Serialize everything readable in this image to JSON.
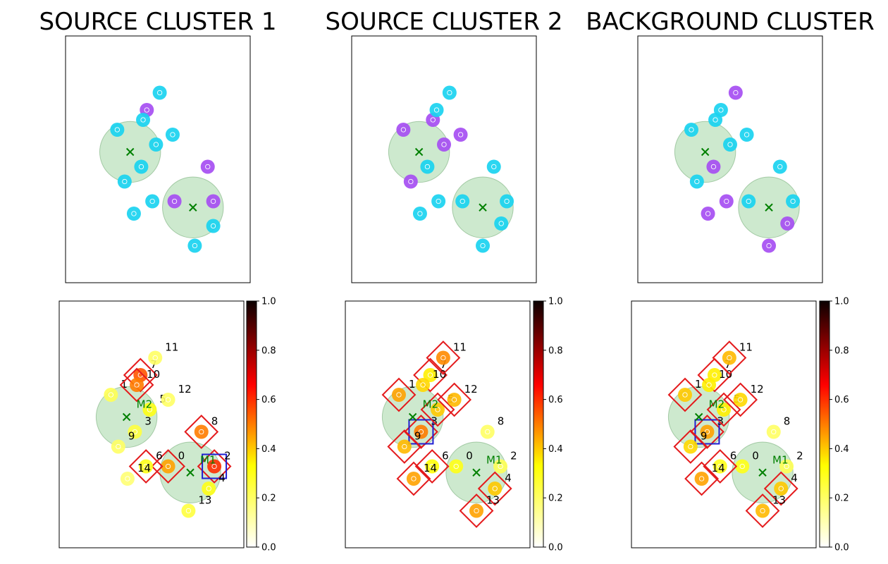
{
  "figure": {
    "colors": {
      "cluster_fill": "#4caf50",
      "centroid": "#008000",
      "point_cyan": "#1ad2f0",
      "point_purple": "#a64ef2",
      "highlight_red": "#e41a1c",
      "highlight_blue": "#1f1fd2",
      "frame": "#000000"
    },
    "colorbar": {
      "min": 0.0,
      "max": 1.0,
      "ticks": [
        "0.0",
        "0.2",
        "0.4",
        "0.6",
        "0.8",
        "1.0"
      ],
      "colormap": "hot_r"
    }
  },
  "chart_data": [
    {
      "type": "scatter",
      "title": "SOURCE CLUSTER 1",
      "xlim": [
        0,
        10
      ],
      "ylim": [
        0,
        10
      ],
      "clusters": [
        {
          "cx": 3.5,
          "cy": 5.3,
          "r": 1.65
        },
        {
          "cx": 6.9,
          "cy": 3.05,
          "r": 1.65
        }
      ],
      "points": [
        {
          "x": 5.1,
          "y": 7.7,
          "c": "cyan"
        },
        {
          "x": 4.4,
          "y": 7.0,
          "c": "purple"
        },
        {
          "x": 4.2,
          "y": 6.6,
          "c": "cyan"
        },
        {
          "x": 2.8,
          "y": 6.2,
          "c": "cyan"
        },
        {
          "x": 5.8,
          "y": 6.0,
          "c": "cyan"
        },
        {
          "x": 4.9,
          "y": 5.6,
          "c": "cyan"
        },
        {
          "x": 4.1,
          "y": 4.7,
          "c": "cyan"
        },
        {
          "x": 7.7,
          "y": 4.7,
          "c": "purple"
        },
        {
          "x": 3.2,
          "y": 4.1,
          "c": "cyan"
        },
        {
          "x": 5.9,
          "y": 3.3,
          "c": "purple"
        },
        {
          "x": 8.0,
          "y": 3.3,
          "c": "purple"
        },
        {
          "x": 4.7,
          "y": 3.3,
          "c": "cyan"
        },
        {
          "x": 3.7,
          "y": 2.8,
          "c": "cyan"
        },
        {
          "x": 8.0,
          "y": 2.3,
          "c": "cyan"
        },
        {
          "x": 7.0,
          "y": 1.5,
          "c": "cyan"
        }
      ],
      "centroids": [
        {
          "x": 3.5,
          "y": 5.3
        },
        {
          "x": 6.9,
          "y": 3.05
        }
      ]
    },
    {
      "type": "scatter",
      "title": "SOURCE CLUSTER 2",
      "xlim": [
        0,
        10
      ],
      "ylim": [
        0,
        10
      ],
      "clusters": [
        {
          "cx": 3.65,
          "cy": 5.3,
          "r": 1.65
        },
        {
          "cx": 7.1,
          "cy": 3.05,
          "r": 1.65
        }
      ],
      "points": [
        {
          "x": 5.3,
          "y": 7.7,
          "c": "cyan"
        },
        {
          "x": 4.4,
          "y": 6.6,
          "c": "purple"
        },
        {
          "x": 4.6,
          "y": 7.0,
          "c": "cyan"
        },
        {
          "x": 2.8,
          "y": 6.2,
          "c": "purple"
        },
        {
          "x": 5.9,
          "y": 6.0,
          "c": "purple"
        },
        {
          "x": 5.0,
          "y": 5.6,
          "c": "purple"
        },
        {
          "x": 4.1,
          "y": 4.7,
          "c": "cyan"
        },
        {
          "x": 7.7,
          "y": 4.7,
          "c": "cyan"
        },
        {
          "x": 3.2,
          "y": 4.1,
          "c": "purple"
        },
        {
          "x": 6.0,
          "y": 3.3,
          "c": "cyan"
        },
        {
          "x": 8.4,
          "y": 3.3,
          "c": "cyan"
        },
        {
          "x": 4.7,
          "y": 3.3,
          "c": "cyan"
        },
        {
          "x": 3.7,
          "y": 2.8,
          "c": "cyan"
        },
        {
          "x": 8.1,
          "y": 2.4,
          "c": "cyan"
        },
        {
          "x": 7.1,
          "y": 1.5,
          "c": "cyan"
        }
      ],
      "centroids": [
        {
          "x": 3.65,
          "y": 5.3
        },
        {
          "x": 7.1,
          "y": 3.05
        }
      ]
    },
    {
      "type": "scatter",
      "title": "BACKGROUND CLUSTER",
      "xlim": [
        0,
        10
      ],
      "ylim": [
        0,
        10
      ],
      "clusters": [
        {
          "cx": 3.65,
          "cy": 5.3,
          "r": 1.65
        },
        {
          "cx": 7.1,
          "cy": 3.05,
          "r": 1.65
        }
      ],
      "points": [
        {
          "x": 5.3,
          "y": 7.7,
          "c": "purple"
        },
        {
          "x": 4.2,
          "y": 6.6,
          "c": "cyan"
        },
        {
          "x": 4.5,
          "y": 7.0,
          "c": "cyan"
        },
        {
          "x": 2.9,
          "y": 6.2,
          "c": "cyan"
        },
        {
          "x": 5.9,
          "y": 6.0,
          "c": "cyan"
        },
        {
          "x": 5.0,
          "y": 5.6,
          "c": "cyan"
        },
        {
          "x": 4.1,
          "y": 4.7,
          "c": "purple"
        },
        {
          "x": 7.7,
          "y": 4.7,
          "c": "cyan"
        },
        {
          "x": 3.2,
          "y": 4.1,
          "c": "cyan"
        },
        {
          "x": 4.8,
          "y": 3.3,
          "c": "purple"
        },
        {
          "x": 6.0,
          "y": 3.3,
          "c": "cyan"
        },
        {
          "x": 8.4,
          "y": 3.3,
          "c": "cyan"
        },
        {
          "x": 3.8,
          "y": 2.8,
          "c": "purple"
        },
        {
          "x": 8.1,
          "y": 2.4,
          "c": "purple"
        },
        {
          "x": 7.1,
          "y": 1.5,
          "c": "purple"
        }
      ],
      "centroids": [
        {
          "x": 3.65,
          "y": 5.3
        },
        {
          "x": 7.1,
          "y": 3.05
        }
      ]
    },
    {
      "type": "scatter",
      "xlim": [
        0,
        10
      ],
      "ylim": [
        0,
        10
      ],
      "clusters": [
        {
          "cx": 3.65,
          "cy": 5.3,
          "r": 1.65
        },
        {
          "cx": 7.1,
          "cy": 3.05,
          "r": 1.65
        }
      ],
      "points": [
        {
          "id": "0",
          "x": 5.9,
          "y": 3.3,
          "v": 0.45,
          "red": true
        },
        {
          "id": "1",
          "x": 2.8,
          "y": 6.2,
          "v": 0.22,
          "red": false
        },
        {
          "id": "2",
          "x": 8.4,
          "y": 3.3,
          "v": 0.6,
          "red": true,
          "blue": true
        },
        {
          "id": "3",
          "x": 4.1,
          "y": 4.7,
          "v": 0.25,
          "red": false
        },
        {
          "id": "4",
          "x": 8.1,
          "y": 2.4,
          "v": 0.3,
          "red": false
        },
        {
          "id": "5",
          "x": 4.9,
          "y": 5.6,
          "v": 0.3,
          "red": false
        },
        {
          "id": "6",
          "x": 4.7,
          "y": 3.3,
          "v": 0.3,
          "red": true
        },
        {
          "id": "7",
          "x": 4.4,
          "y": 7.0,
          "v": 0.55,
          "red": true
        },
        {
          "id": "8",
          "x": 7.7,
          "y": 4.7,
          "v": 0.5,
          "red": true
        },
        {
          "id": "9",
          "x": 3.2,
          "y": 4.1,
          "v": 0.2,
          "red": false
        },
        {
          "id": "10",
          "x": 4.2,
          "y": 6.6,
          "v": 0.5,
          "red": true
        },
        {
          "id": "11",
          "x": 5.2,
          "y": 7.7,
          "v": 0.2,
          "red": false
        },
        {
          "id": "12",
          "x": 5.9,
          "y": 6.0,
          "v": 0.2,
          "red": false
        },
        {
          "id": "13",
          "x": 7.0,
          "y": 1.5,
          "v": 0.25,
          "red": false
        },
        {
          "id": "14",
          "x": 3.7,
          "y": 2.8,
          "v": 0.18,
          "red": false
        }
      ],
      "centroid_labels": [
        {
          "label": "M1",
          "x": 7.1,
          "y": 3.05
        },
        {
          "label": "M2",
          "x": 3.65,
          "y": 5.3
        }
      ]
    },
    {
      "type": "scatter",
      "xlim": [
        0,
        10
      ],
      "ylim": [
        0,
        10
      ],
      "clusters": [
        {
          "cx": 3.65,
          "cy": 5.3,
          "r": 1.65
        },
        {
          "cx": 7.1,
          "cy": 3.05,
          "r": 1.65
        }
      ],
      "points": [
        {
          "id": "0",
          "x": 6.0,
          "y": 3.3,
          "v": 0.3,
          "red": false
        },
        {
          "id": "1",
          "x": 2.9,
          "y": 6.2,
          "v": 0.45,
          "red": true
        },
        {
          "id": "2",
          "x": 8.4,
          "y": 3.3,
          "v": 0.22,
          "red": false
        },
        {
          "id": "3",
          "x": 4.1,
          "y": 4.7,
          "v": 0.5,
          "red": true,
          "blue": true
        },
        {
          "id": "4",
          "x": 8.1,
          "y": 2.4,
          "v": 0.4,
          "red": true
        },
        {
          "id": "5",
          "x": 5.0,
          "y": 5.6,
          "v": 0.4,
          "red": true
        },
        {
          "id": "6",
          "x": 4.7,
          "y": 3.3,
          "v": 0.32,
          "red": true
        },
        {
          "id": "7",
          "x": 4.6,
          "y": 7.0,
          "v": 0.35,
          "red": true
        },
        {
          "id": "8",
          "x": 7.7,
          "y": 4.7,
          "v": 0.2,
          "red": false
        },
        {
          "id": "9",
          "x": 3.2,
          "y": 4.1,
          "v": 0.42,
          "red": true
        },
        {
          "id": "10",
          "x": 4.2,
          "y": 6.6,
          "v": 0.38,
          "red": false
        },
        {
          "id": "11",
          "x": 5.3,
          "y": 7.7,
          "v": 0.48,
          "red": true
        },
        {
          "id": "12",
          "x": 5.9,
          "y": 6.0,
          "v": 0.42,
          "red": true
        },
        {
          "id": "13",
          "x": 7.1,
          "y": 1.5,
          "v": 0.45,
          "red": true
        },
        {
          "id": "14",
          "x": 3.7,
          "y": 2.8,
          "v": 0.45,
          "red": true
        }
      ],
      "centroid_labels": [
        {
          "label": "M1",
          "x": 7.1,
          "y": 3.05
        },
        {
          "label": "M2",
          "x": 3.65,
          "y": 5.3
        }
      ]
    },
    {
      "type": "scatter",
      "xlim": [
        0,
        10
      ],
      "ylim": [
        0,
        10
      ],
      "clusters": [
        {
          "cx": 3.65,
          "cy": 5.3,
          "r": 1.65
        },
        {
          "cx": 7.1,
          "cy": 3.05,
          "r": 1.65
        }
      ],
      "points": [
        {
          "id": "0",
          "x": 6.0,
          "y": 3.3,
          "v": 0.3,
          "red": false
        },
        {
          "id": "1",
          "x": 2.9,
          "y": 6.2,
          "v": 0.4,
          "red": true
        },
        {
          "id": "2",
          "x": 8.4,
          "y": 3.3,
          "v": 0.22,
          "red": false
        },
        {
          "id": "3",
          "x": 4.1,
          "y": 4.7,
          "v": 0.45,
          "red": true,
          "blue": true
        },
        {
          "id": "4",
          "x": 8.1,
          "y": 2.4,
          "v": 0.4,
          "red": true
        },
        {
          "id": "5",
          "x": 5.0,
          "y": 5.6,
          "v": 0.35,
          "red": true
        },
        {
          "id": "6",
          "x": 4.8,
          "y": 3.3,
          "v": 0.3,
          "red": true
        },
        {
          "id": "7",
          "x": 4.5,
          "y": 7.0,
          "v": 0.35,
          "red": true
        },
        {
          "id": "8",
          "x": 7.7,
          "y": 4.7,
          "v": 0.2,
          "red": false
        },
        {
          "id": "9",
          "x": 3.2,
          "y": 4.1,
          "v": 0.38,
          "red": true
        },
        {
          "id": "10",
          "x": 4.2,
          "y": 6.6,
          "v": 0.35,
          "red": false
        },
        {
          "id": "11",
          "x": 5.3,
          "y": 7.7,
          "v": 0.42,
          "red": true
        },
        {
          "id": "12",
          "x": 5.9,
          "y": 6.0,
          "v": 0.38,
          "red": true
        },
        {
          "id": "13",
          "x": 7.1,
          "y": 1.5,
          "v": 0.42,
          "red": true
        },
        {
          "id": "14",
          "x": 3.8,
          "y": 2.8,
          "v": 0.45,
          "red": true
        }
      ],
      "centroid_labels": [
        {
          "label": "M1",
          "x": 7.1,
          "y": 3.05
        },
        {
          "label": "M2",
          "x": 3.65,
          "y": 5.3
        }
      ]
    }
  ]
}
